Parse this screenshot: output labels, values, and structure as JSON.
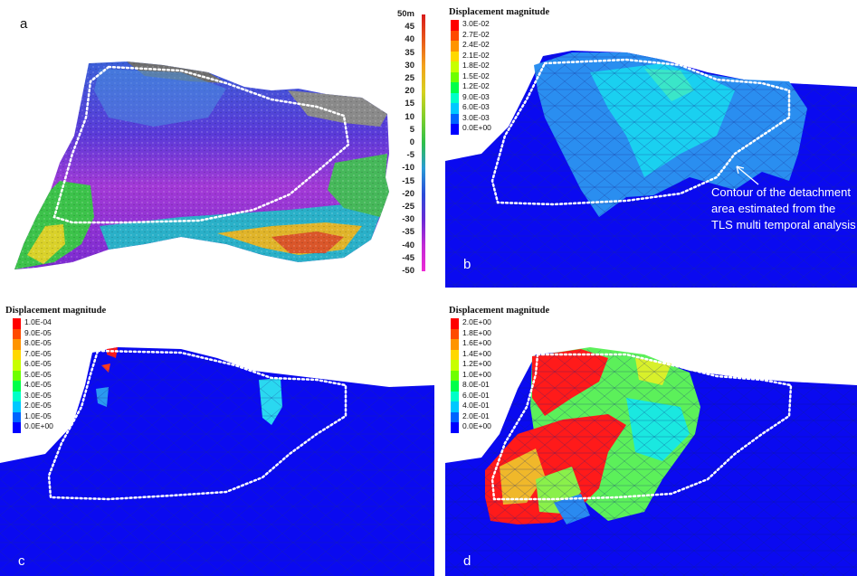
{
  "panels": {
    "a": {
      "letter": "a",
      "scale": {
        "ticks": [
          "50m",
          "45",
          "40",
          "35",
          "30",
          "25",
          "20",
          "15",
          "10",
          "5",
          "0",
          "-5",
          "-10",
          "-15",
          "-20",
          "-25",
          "-30",
          "-35",
          "-40",
          "-45",
          "-50"
        ],
        "colors": [
          "#d81b1b",
          "#e8591a",
          "#f3a21c",
          "#d7d01e",
          "#7fcf2a",
          "#2ec04a",
          "#2a9ad6",
          "#2a4bd8",
          "#6a2ad6",
          "#c22ad6",
          "#ee2ad6"
        ]
      }
    },
    "b": {
      "letter": "b",
      "legend_title": "Displacement magnitude",
      "legend": [
        {
          "label": "3.0E-02",
          "color": "#ff0000"
        },
        {
          "label": "2.7E-02",
          "color": "#ff4a00"
        },
        {
          "label": "2.4E-02",
          "color": "#ff9400"
        },
        {
          "label": "2.1E-02",
          "color": "#ffd800"
        },
        {
          "label": "1.8E-02",
          "color": "#c8ff00"
        },
        {
          "label": "1.5E-02",
          "color": "#6eff00"
        },
        {
          "label": "1.2E-02",
          "color": "#00ff4a"
        },
        {
          "label": "9.0E-03",
          "color": "#00ffc8"
        },
        {
          "label": "6.0E-03",
          "color": "#00c8ff"
        },
        {
          "label": "3.0E-03",
          "color": "#0064ff"
        },
        {
          "label": "0.0E+00",
          "color": "#0000ff"
        }
      ],
      "annotation": "Contour of the detachment area estimated from the TLS multi temporal analysis"
    },
    "c": {
      "letter": "c",
      "legend_title": "Displacement magnitude",
      "legend": [
        {
          "label": "1.0E-04",
          "color": "#ff0000"
        },
        {
          "label": "9.0E-05",
          "color": "#ff4a00"
        },
        {
          "label": "8.0E-05",
          "color": "#ff9400"
        },
        {
          "label": "7.0E-05",
          "color": "#ffd800"
        },
        {
          "label": "6.0E-05",
          "color": "#c8ff00"
        },
        {
          "label": "5.0E-05",
          "color": "#6eff00"
        },
        {
          "label": "4.0E-05",
          "color": "#00ff4a"
        },
        {
          "label": "3.0E-05",
          "color": "#00ffc8"
        },
        {
          "label": "2.0E-05",
          "color": "#00c8ff"
        },
        {
          "label": "1.0E-05",
          "color": "#0064ff"
        },
        {
          "label": "0.0E+00",
          "color": "#0000ff"
        }
      ]
    },
    "d": {
      "letter": "d",
      "legend_title": "Displacement magnitude",
      "legend": [
        {
          "label": "2.0E+00",
          "color": "#ff0000"
        },
        {
          "label": "1.8E+00",
          "color": "#ff4a00"
        },
        {
          "label": "1.6E+00",
          "color": "#ff9400"
        },
        {
          "label": "1.4E+00",
          "color": "#ffd800"
        },
        {
          "label": "1.2E+00",
          "color": "#c8ff00"
        },
        {
          "label": "1.0E+00",
          "color": "#6eff00"
        },
        {
          "label": "8.0E-01",
          "color": "#00ff4a"
        },
        {
          "label": "6.0E-01",
          "color": "#00ffc8"
        },
        {
          "label": "4.0E-01",
          "color": "#00c8ff"
        },
        {
          "label": "2.0E-01",
          "color": "#0064ff"
        },
        {
          "label": "0.0E+00",
          "color": "#0000ff"
        }
      ]
    }
  }
}
